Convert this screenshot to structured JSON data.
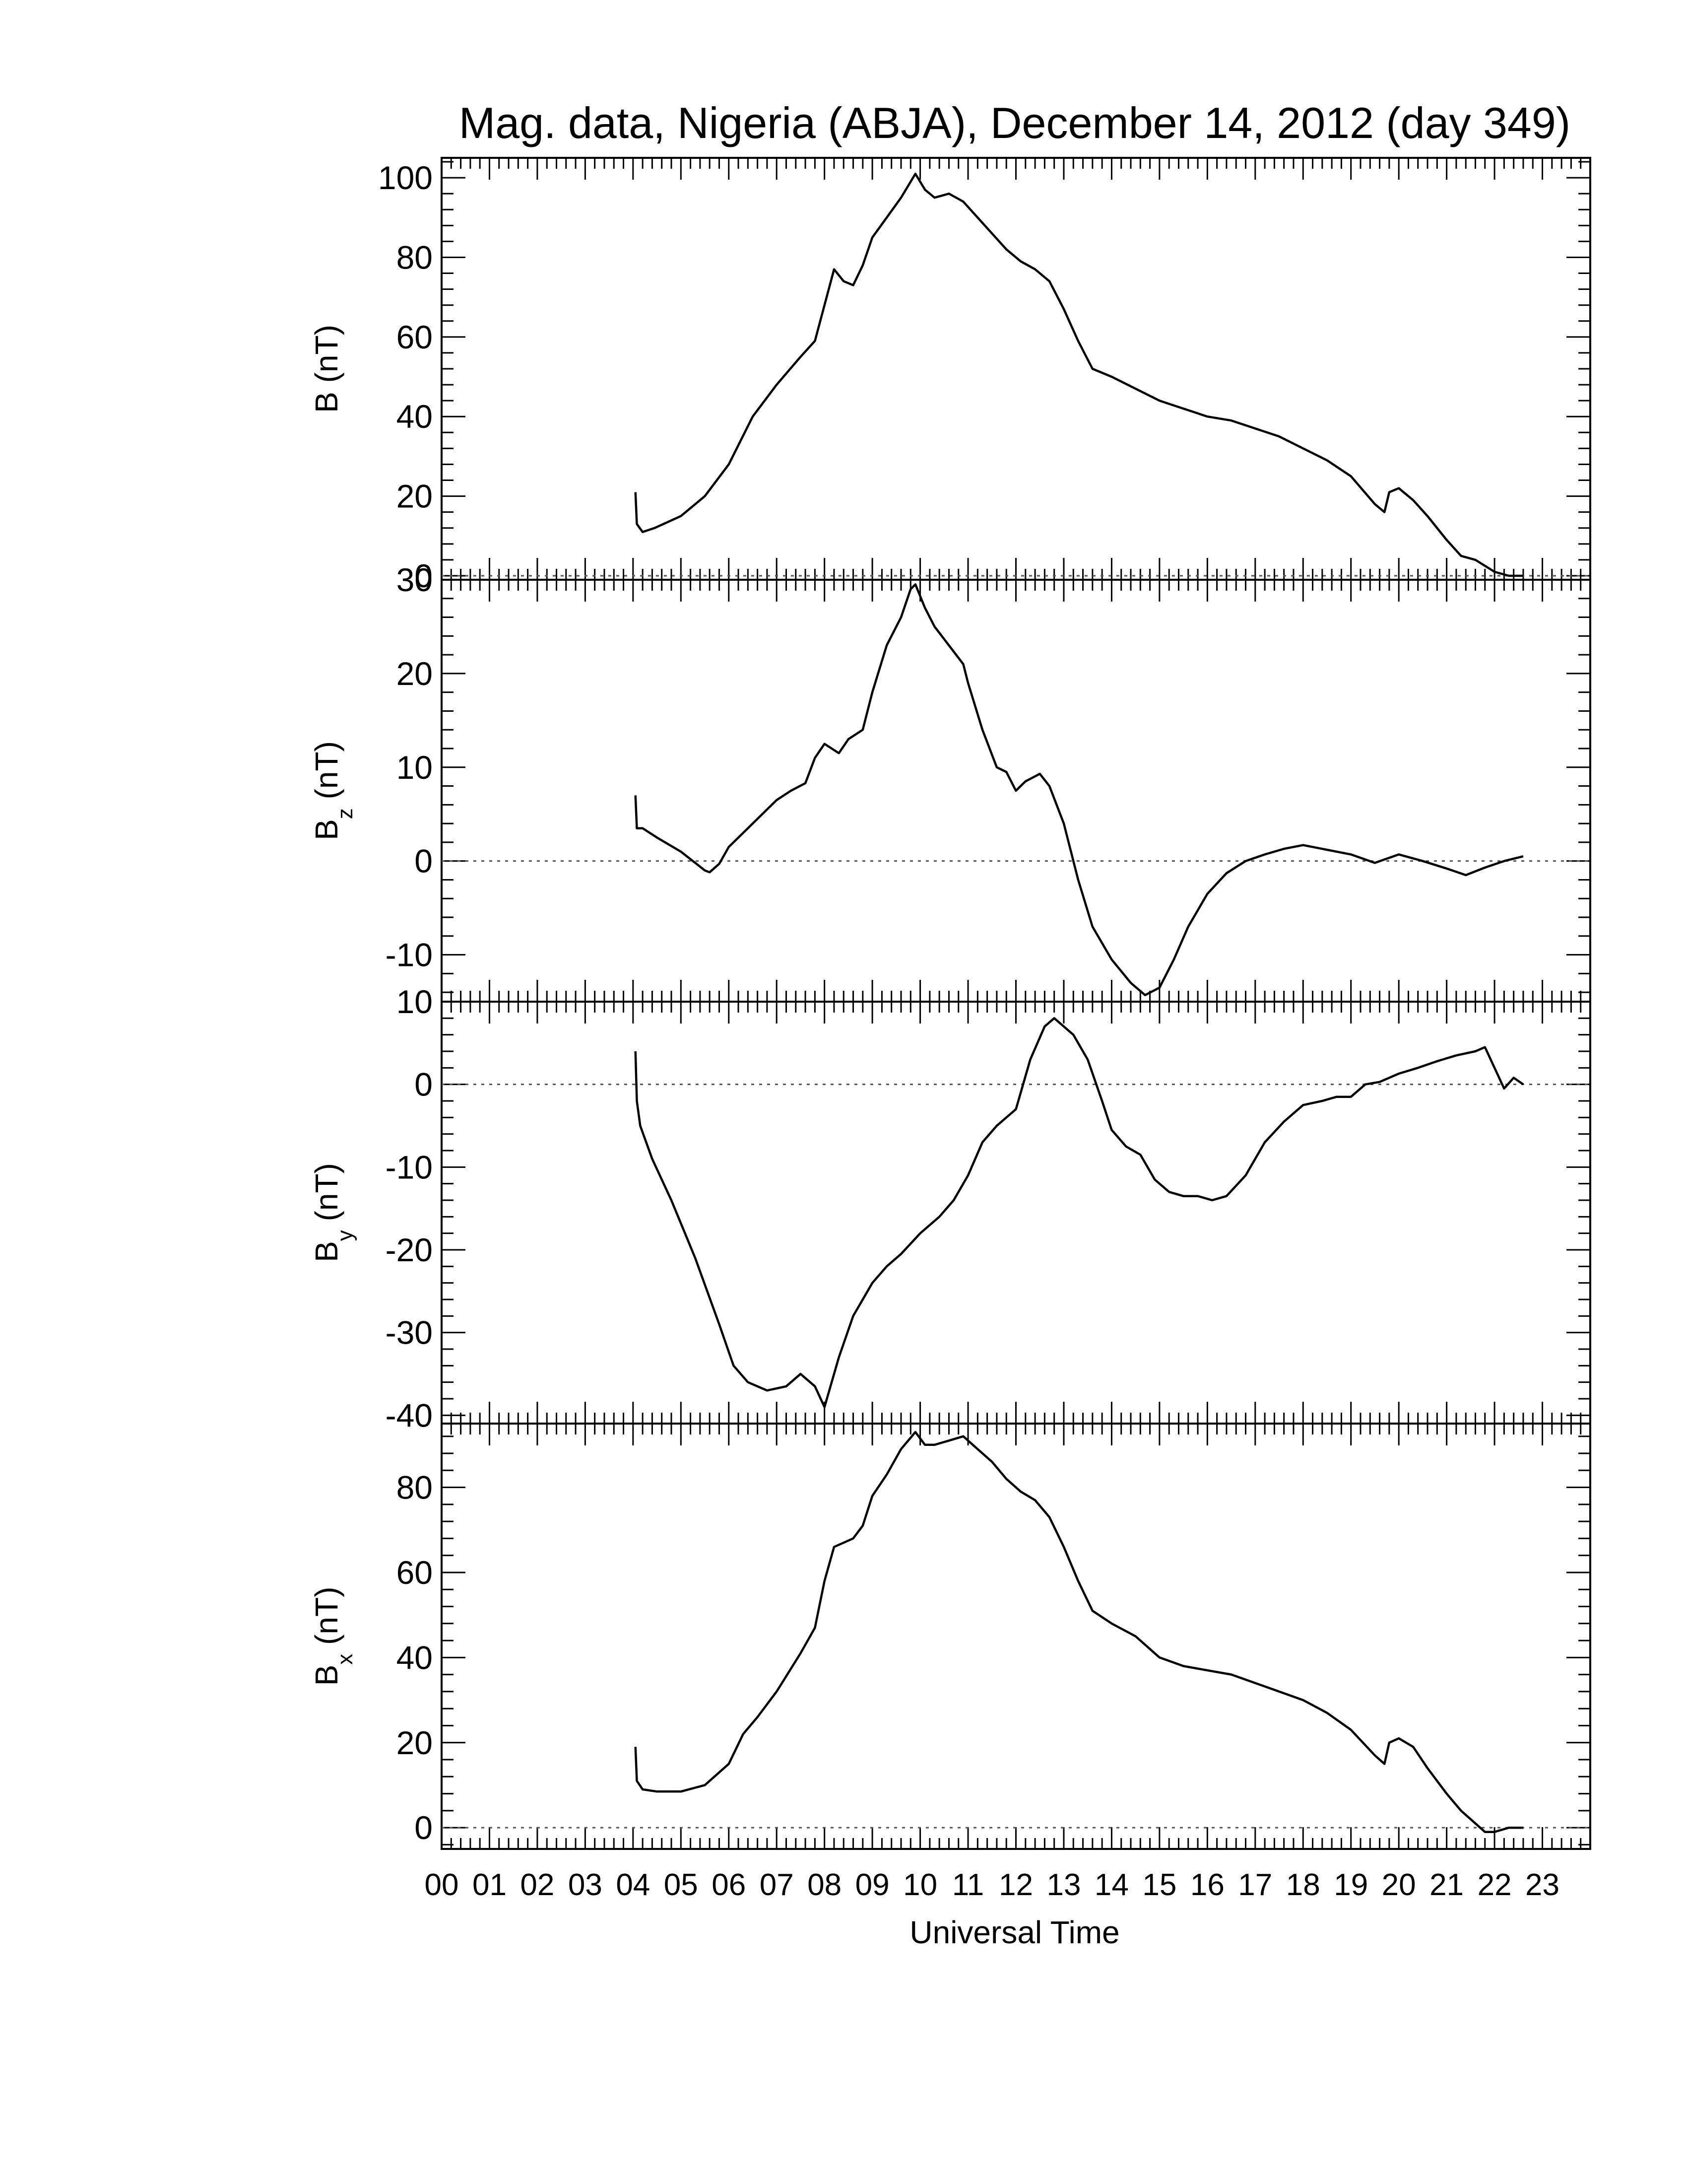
{
  "chart_data": {
    "title": "Mag. data, Nigeria (ABJA), December 14, 2012 (day 349)",
    "xlabel": "Universal Time",
    "xlim": [
      0,
      24
    ],
    "x_tick_labels": [
      "00",
      "01",
      "02",
      "03",
      "04",
      "05",
      "06",
      "07",
      "08",
      "09",
      "10",
      "11",
      "12",
      "13",
      "14",
      "15",
      "16",
      "17",
      "18",
      "19",
      "20",
      "21",
      "22",
      "23"
    ],
    "panels": [
      {
        "type": "line",
        "ylabel_main": "B",
        "ylabel_sub": "",
        "ylabel_unit": "(nT)",
        "ylim": [
          -1,
          105
        ],
        "y_ticks": [
          0,
          20,
          40,
          60,
          80,
          100
        ],
        "y_tick_labels": [
          "0",
          "20",
          "40",
          "60",
          "80",
          "100"
        ],
        "zero_line": true,
        "x": [
          4.05,
          4.08,
          4.2,
          4.45,
          5.0,
          5.5,
          6.0,
          6.5,
          7.0,
          7.5,
          7.8,
          8.0,
          8.2,
          8.4,
          8.6,
          8.8,
          9.0,
          9.3,
          9.6,
          9.9,
          10.1,
          10.3,
          10.6,
          10.9,
          11.2,
          11.5,
          11.8,
          12.1,
          12.4,
          12.7,
          13.0,
          13.3,
          13.6,
          14.0,
          14.5,
          15.0,
          15.5,
          16.0,
          16.5,
          17.0,
          17.5,
          18.0,
          18.5,
          19.0,
          19.5,
          19.7,
          19.8,
          20.0,
          20.3,
          20.6,
          21.0,
          21.3,
          21.6,
          22.0,
          22.3,
          22.6
        ],
        "y": [
          21,
          13,
          11,
          12,
          15,
          20,
          28,
          40,
          48,
          55,
          59,
          68,
          77,
          74,
          73,
          78,
          85,
          90,
          95,
          101,
          97,
          95,
          96,
          94,
          90,
          86,
          82,
          79,
          77,
          74,
          67,
          59,
          52,
          50,
          47,
          44,
          42,
          40,
          39,
          37,
          35,
          32,
          29,
          25,
          18,
          16,
          21,
          22,
          19,
          15,
          9,
          5,
          4,
          1,
          0,
          0
        ]
      },
      {
        "type": "line",
        "ylabel_main": "B",
        "ylabel_sub": "z",
        "ylabel_unit": "(nT)",
        "ylim": [
          -15,
          30
        ],
        "y_ticks": [
          -10,
          0,
          10,
          20,
          30
        ],
        "y_tick_labels": [
          "-10",
          "0",
          "10",
          "20",
          "30"
        ],
        "zero_line": true,
        "x": [
          4.05,
          4.08,
          4.2,
          4.5,
          5.0,
          5.5,
          5.6,
          5.8,
          6.0,
          6.5,
          7.0,
          7.3,
          7.6,
          7.8,
          8.0,
          8.3,
          8.5,
          8.8,
          9.0,
          9.3,
          9.6,
          9.8,
          9.9,
          10.1,
          10.3,
          10.6,
          10.9,
          11.0,
          11.3,
          11.6,
          11.8,
          12.0,
          12.2,
          12.5,
          12.7,
          13.0,
          13.3,
          13.6,
          14.0,
          14.4,
          14.7,
          15.0,
          15.3,
          15.6,
          16.0,
          16.4,
          16.8,
          17.2,
          17.6,
          18.0,
          18.5,
          19.0,
          19.5,
          20.0,
          20.5,
          21.0,
          21.4,
          21.8,
          22.2,
          22.6
        ],
        "y": [
          7,
          3.5,
          3.5,
          2.5,
          1,
          -1,
          -1.2,
          -0.3,
          1.5,
          4,
          6.5,
          7.5,
          8.3,
          11,
          12.5,
          11.5,
          13,
          14,
          18,
          23,
          26,
          29,
          29.5,
          27,
          25,
          23,
          21,
          19,
          14,
          10,
          9.5,
          7.5,
          8.5,
          9.3,
          8,
          4,
          -2,
          -7,
          -10.5,
          -13,
          -14.3,
          -13.5,
          -10.5,
          -7,
          -3.5,
          -1.3,
          0,
          0.7,
          1.3,
          1.7,
          1.2,
          0.7,
          -0.2,
          0.7,
          0,
          -0.8,
          -1.5,
          -0.7,
          0,
          0.5
        ]
      },
      {
        "type": "line",
        "ylabel_main": "B",
        "ylabel_sub": "y",
        "ylabel_unit": "(nT)",
        "ylim": [
          -41,
          10
        ],
        "y_ticks": [
          -40,
          -30,
          -20,
          -10,
          0,
          10
        ],
        "y_tick_labels": [
          "-40",
          "-30",
          "-20",
          "-10",
          "0",
          "10"
        ],
        "zero_line": true,
        "x": [
          4.05,
          4.08,
          4.15,
          4.4,
          4.8,
          5.3,
          5.8,
          6.1,
          6.4,
          6.8,
          7.2,
          7.5,
          7.8,
          8.0,
          8.3,
          8.6,
          9.0,
          9.3,
          9.6,
          10.0,
          10.4,
          10.7,
          11.0,
          11.3,
          11.6,
          12.0,
          12.3,
          12.6,
          12.8,
          13.0,
          13.2,
          13.5,
          13.8,
          14.0,
          14.3,
          14.6,
          14.9,
          15.2,
          15.5,
          15.8,
          16.1,
          16.4,
          16.8,
          17.2,
          17.6,
          18.0,
          18.4,
          18.7,
          19.0,
          19.3,
          19.6,
          20.0,
          20.4,
          20.8,
          21.2,
          21.6,
          21.8,
          22.0,
          22.2,
          22.4,
          22.6
        ],
        "y": [
          4,
          -2,
          -5,
          -9,
          -14,
          -21,
          -29,
          -34,
          -36,
          -37,
          -36.5,
          -35,
          -36.5,
          -39,
          -33,
          -28,
          -24,
          -22,
          -20.5,
          -18,
          -16,
          -14,
          -11,
          -7,
          -5,
          -3,
          3,
          7,
          8,
          7,
          6,
          3,
          -2,
          -5.5,
          -7.5,
          -8.5,
          -11.5,
          -13,
          -13.5,
          -13.5,
          -14,
          -13.5,
          -11,
          -7,
          -4.5,
          -2.5,
          -2,
          -1.5,
          -1.5,
          0,
          0.3,
          1.3,
          2,
          2.8,
          3.5,
          4,
          4.5,
          2,
          -0.5,
          0.8,
          0
        ]
      },
      {
        "type": "line",
        "ylabel_main": "B",
        "ylabel_sub": "x",
        "ylabel_unit": "(nT)",
        "ylim": [
          -5,
          95
        ],
        "y_ticks": [
          0,
          20,
          40,
          60,
          80
        ],
        "y_tick_labels": [
          "0",
          "20",
          "40",
          "60",
          "80"
        ],
        "zero_line": true,
        "x": [
          4.05,
          4.08,
          4.2,
          4.5,
          5.0,
          5.5,
          6.0,
          6.3,
          6.6,
          7.0,
          7.5,
          7.8,
          8.0,
          8.2,
          8.4,
          8.6,
          8.8,
          9.0,
          9.3,
          9.6,
          9.9,
          10.1,
          10.3,
          10.6,
          10.9,
          11.2,
          11.5,
          11.8,
          12.1,
          12.4,
          12.7,
          13.0,
          13.3,
          13.6,
          14.0,
          14.5,
          15.0,
          15.5,
          16.0,
          16.5,
          17.0,
          17.5,
          18.0,
          18.5,
          19.0,
          19.5,
          19.7,
          19.8,
          20.0,
          20.3,
          20.6,
          21.0,
          21.3,
          21.6,
          21.8,
          22.0,
          22.3,
          22.6
        ],
        "y": [
          19,
          11,
          9,
          8.5,
          8.5,
          10,
          15,
          22,
          26,
          32,
          41,
          47,
          58,
          66,
          67,
          68,
          71,
          78,
          83,
          89,
          93,
          90,
          90,
          91,
          92,
          89,
          86,
          82,
          79,
          77,
          73,
          66,
          58,
          51,
          48,
          45,
          40,
          38,
          37,
          36,
          34,
          32,
          30,
          27,
          23,
          17,
          15,
          20,
          21,
          19,
          14,
          8,
          4,
          1,
          -1,
          -1,
          0,
          0
        ]
      }
    ]
  }
}
